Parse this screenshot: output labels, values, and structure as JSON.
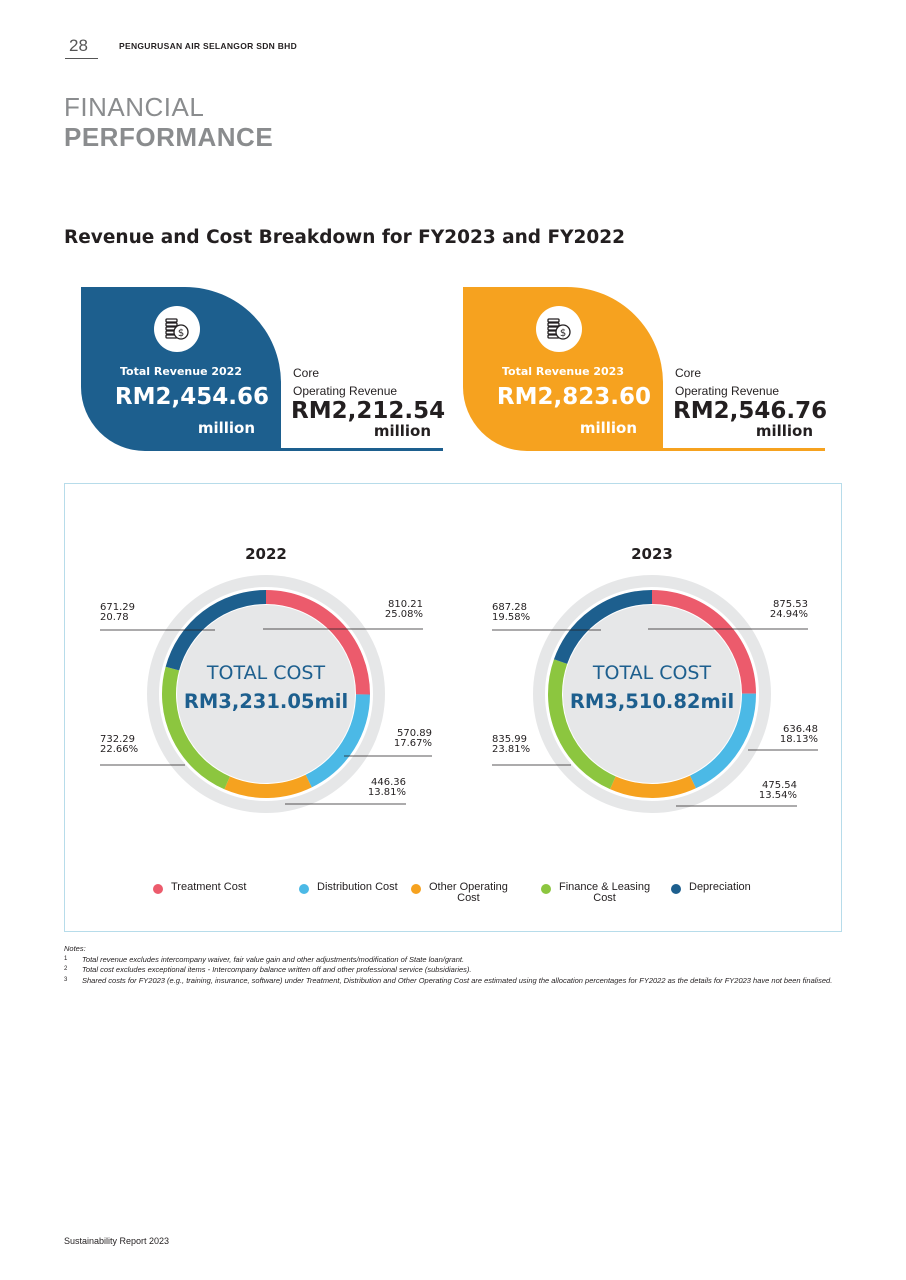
{
  "header": {
    "page_number": "28",
    "organization": "PENGURUSAN AIR SELANGOR SDN BHD"
  },
  "title": {
    "line1": "FINANCIAL",
    "line2": "PERFORMANCE"
  },
  "section_title": "Revenue and Cost Breakdown for FY2023 and FY2022",
  "revenue_cards": [
    {
      "label": "Total Revenue 2022",
      "value": "RM2,454.66",
      "unit": "million",
      "core_label_line1": "Core",
      "core_label_line2": "Operating Revenue",
      "core_value": "RM2,212.54",
      "core_unit": "million",
      "color": "#1d5f8e",
      "icon": "coins-dollar-icon"
    },
    {
      "label": "Total Revenue 2023",
      "value": "RM2,823.60",
      "unit": "million",
      "core_label_line1": "Core",
      "core_label_line2": "Operating Revenue",
      "core_value": "RM2,546.76",
      "core_unit": "million",
      "color": "#f6a21f",
      "icon": "coins-dollar-icon"
    }
  ],
  "chart_data": [
    {
      "type": "pie",
      "title": "2022",
      "center_label": "TOTAL COST",
      "center_value": "RM3,231.05mil",
      "categories": [
        "Treatment Cost",
        "Distribution Cost",
        "Other Operating Cost",
        "Finance & Leasing Cost",
        "Depreciation"
      ],
      "values": [
        810.21,
        570.89,
        446.36,
        732.29,
        671.29
      ],
      "percent_labels": [
        "25.08%",
        "17.67%",
        "13.81%",
        "22.66%",
        "20.78"
      ]
    },
    {
      "type": "pie",
      "title": "2023",
      "center_label": "TOTAL COST",
      "center_value": "RM3,510.82mil",
      "categories": [
        "Treatment Cost",
        "Distribution Cost",
        "Other Operating Cost",
        "Finance & Leasing Cost",
        "Depreciation"
      ],
      "values": [
        875.53,
        636.48,
        475.54,
        835.99,
        687.28
      ],
      "percent_labels": [
        "24.94%",
        "18.13%",
        "13.54%",
        "23.81%",
        "19.58%"
      ]
    }
  ],
  "legend": [
    {
      "label": "Treatment Cost",
      "color": "#ec5b6c"
    },
    {
      "label": "Distribution Cost",
      "color": "#4bb9e6"
    },
    {
      "label": "Other Operating\nCost",
      "color": "#f6a21f"
    },
    {
      "label": "Finance & Leasing\nCost",
      "color": "#8cc63f"
    },
    {
      "label": "Depreciation",
      "color": "#1d5f8e"
    }
  ],
  "notes": {
    "heading": "Notes:",
    "items": [
      {
        "num": "1",
        "text": "Total revenue excludes intercompany waiver, fair value gain and other adjustments/modification of State loan/grant."
      },
      {
        "num": "2",
        "text": "Total cost excludes exceptional items - Intercompany balance written off and other professional service (subsidiaries)."
      },
      {
        "num": "3",
        "text": "Shared costs for FY2023 (e.g., training, insurance, software) under Treatment, Distribution and Other Operating Cost are estimated using the allocation percentages for FY2022 as the details for FY2023 have not been finalised."
      }
    ]
  },
  "footer": "Sustainability Report 2023"
}
